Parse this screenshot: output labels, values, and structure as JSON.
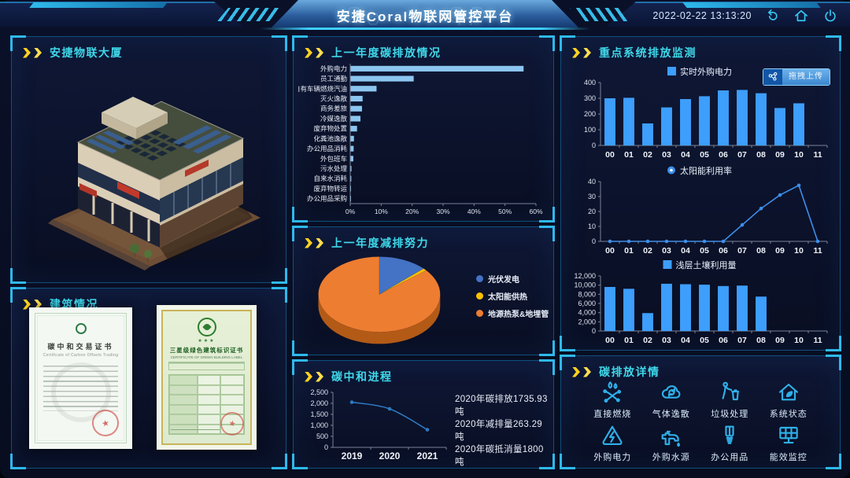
{
  "header": {
    "title": "安捷Coral物联网管控平台",
    "timestamp": "2022-02-22 13:13:20",
    "icons": [
      "back-icon",
      "home-icon",
      "power-icon"
    ]
  },
  "colors": {
    "accent_cyan": "#2fb9ec",
    "panel_title": "#3fd8ea",
    "chevron_yellow": "#ffd21e",
    "bar_light_blue": "#8cc6f0",
    "bar_bright_blue": "#3d9efc",
    "line_blue": "#2e78c0",
    "pie_blue": "#4472c4",
    "pie_yellow": "#ffc000",
    "pie_orange": "#ed7d31"
  },
  "panels": {
    "building": {
      "title": "安捷物联大厦"
    },
    "building_status": {
      "title": "建筑情况",
      "cert1": {
        "title": "碳中和交易证书",
        "subtitle": "Certificate of Carbon Offsets Trading",
        "seal": "★"
      },
      "cert2": {
        "title": "三星级绿色建筑标识证书",
        "subtitle": "CERTIFICATE OF GREEN BUILDING LABEL",
        "stars": "★★★",
        "seal": "★"
      }
    },
    "emissions": {
      "title": "上一年度碳排放情况"
    },
    "reduction": {
      "title": "上一年度减排努力"
    },
    "neutrality": {
      "title": "碳中和进程",
      "stats": [
        "2020年碳排放1735.93吨",
        "2020年减排量263.29吨",
        "2020年碳抵消量1800吨"
      ]
    },
    "monitoring": {
      "title": "重点系统排放监测",
      "upload_button": "拖拽上传"
    },
    "details": {
      "title": "碳排放详情",
      "items": [
        {
          "label": "直接燃烧",
          "icon": "direct-combustion-icon"
        },
        {
          "label": "气体逸散",
          "icon": "gas-escape-icon"
        },
        {
          "label": "垃圾处理",
          "icon": "waste-disposal-icon"
        },
        {
          "label": "系统状态",
          "icon": "system-status-icon"
        },
        {
          "label": "外购电力",
          "icon": "purchased-electricity-icon"
        },
        {
          "label": "外购水源",
          "icon": "purchased-water-icon"
        },
        {
          "label": "办公用品",
          "icon": "office-supplies-icon"
        },
        {
          "label": "能效监控",
          "icon": "energy-monitor-icon"
        }
      ]
    }
  },
  "chart_data": [
    {
      "id": "emissions_bar",
      "type": "bar",
      "orientation": "horizontal",
      "title": "上一年度碳排放情况",
      "categories": [
        "外购电力",
        "员工通勤",
        "自有车辆燃烧汽油",
        "灭火逸散",
        "商务差旅",
        "冷媒逸散",
        "废弃物处置",
        "化粪池逸散",
        "办公用品消耗",
        "外包班车",
        "污水处理",
        "自来水消耗",
        "废弃物转运",
        "办公用品采购"
      ],
      "values": [
        56,
        20.5,
        8.5,
        4,
        3.8,
        3.3,
        2.2,
        1.2,
        1.1,
        1.0,
        0.4,
        0.35,
        0.2,
        0.1
      ],
      "xlim": [
        0,
        60
      ],
      "xticks": [
        "0%",
        "10%",
        "20%",
        "30%",
        "40%",
        "50%",
        "60%"
      ],
      "color": "#8cc6f0",
      "grid": false
    },
    {
      "id": "reduction_pie",
      "type": "pie",
      "title": "上一年度减排努力",
      "labels": [
        "光伏发电",
        "太阳能供热",
        "地源热泵&地埋管"
      ],
      "values": [
        13,
        1,
        86
      ],
      "colors": [
        "#4472c4",
        "#ffc000",
        "#ed7d31"
      ],
      "side_color": "#b35a17",
      "legend_position": "right"
    },
    {
      "id": "neutrality_line",
      "type": "line",
      "smooth": true,
      "title": "碳中和进程",
      "x": [
        "2019",
        "2020",
        "2021"
      ],
      "values": [
        2050,
        1750,
        800
      ],
      "ylim": [
        0,
        2500
      ],
      "yticks": [
        0,
        500,
        1000,
        1500,
        2000,
        2500
      ],
      "ytick_labels": [
        "0",
        "500",
        "1,000",
        "1,500",
        "2,000",
        "2,500"
      ],
      "color": "#2e78c0",
      "xlabel_size": 12,
      "grid": false
    },
    {
      "id": "realtime_power",
      "type": "bar",
      "legend": "实时外购电力",
      "legend_shape": "square",
      "categories": [
        "00",
        "01",
        "02",
        "03",
        "04",
        "05",
        "06",
        "07",
        "08",
        "09",
        "10",
        "11"
      ],
      "values": [
        300,
        303,
        140,
        242,
        295,
        313,
        350,
        353,
        332,
        238,
        268,
        null
      ],
      "ylim": [
        0,
        400
      ],
      "yticks": [
        0,
        100,
        200,
        300,
        400
      ],
      "ytick_labels": [
        "0",
        "100",
        "200",
        "300",
        "400"
      ],
      "color": "#3d9efc",
      "grid": false
    },
    {
      "id": "solar_rate",
      "type": "line",
      "smooth": false,
      "legend": "太阳能利用率",
      "legend_shape": "dot",
      "x": [
        "00",
        "01",
        "02",
        "03",
        "04",
        "05",
        "06",
        "07",
        "08",
        "09",
        "10",
        "11"
      ],
      "values": [
        0,
        0,
        0,
        0,
        0,
        0,
        0,
        11,
        22,
        31,
        37.5,
        0
      ],
      "ylim": [
        0,
        40
      ],
      "yticks": [
        0,
        10,
        20,
        30,
        40
      ],
      "ytick_labels": [
        "0",
        "10",
        "20",
        "30",
        "40"
      ],
      "color": "#3e8ee8",
      "grid": false
    },
    {
      "id": "soil_usage",
      "type": "bar",
      "legend": "浅层土壤利用量",
      "legend_shape": "square",
      "categories": [
        "00",
        "01",
        "02",
        "03",
        "04",
        "05",
        "06",
        "07",
        "08",
        "09",
        "10",
        "11"
      ],
      "values": [
        9600,
        9200,
        3900,
        10300,
        10200,
        10100,
        9800,
        9900,
        7500,
        null,
        null,
        null
      ],
      "ylim": [
        0,
        12000
      ],
      "yticks": [
        0,
        2000,
        4000,
        6000,
        8000,
        10000,
        12000
      ],
      "ytick_labels": [
        "0",
        "2,000",
        "4,000",
        "6,000",
        "8,000",
        "10,000",
        "12,000"
      ],
      "color": "#3d9efc",
      "grid": false
    }
  ]
}
